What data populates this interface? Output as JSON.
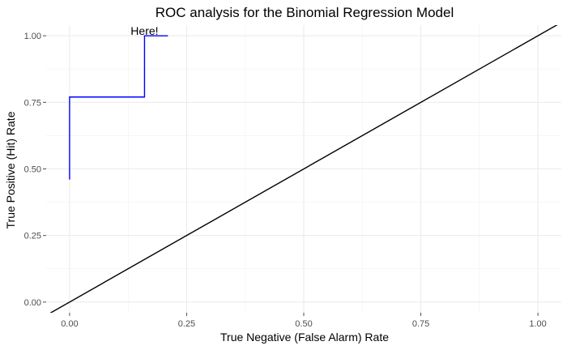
{
  "chart_data": {
    "type": "line",
    "title": "ROC analysis for the Binomial Regression Model",
    "xlabel": "True Negative (False Alarm) Rate",
    "ylabel": "True Positive (Hit) Rate",
    "xlim": [
      -0.05,
      1.05
    ],
    "ylim": [
      -0.04,
      1.04
    ],
    "x_ticks": [
      0.0,
      0.25,
      0.5,
      0.75,
      1.0
    ],
    "x_tick_labels": [
      "0.00",
      "0.25",
      "0.50",
      "0.75",
      "1.00"
    ],
    "y_ticks": [
      0.0,
      0.25,
      0.5,
      0.75,
      1.0
    ],
    "y_tick_labels": [
      "0.00",
      "0.25",
      "0.50",
      "0.75",
      "1.00"
    ],
    "grid": true,
    "legend": "none",
    "series": [
      {
        "color": "#0000ff",
        "style": "step",
        "x": [
          0.0,
          0.0,
          0.16,
          0.16,
          0.21
        ],
        "y": [
          0.46,
          0.77,
          0.77,
          1.0,
          1.0
        ]
      },
      {
        "color": "#000000",
        "style": "abline",
        "intercept": 0,
        "slope": 1
      }
    ],
    "annotations": [
      {
        "text": "Here!",
        "x": 0.16,
        "y": 1.0
      }
    ]
  }
}
